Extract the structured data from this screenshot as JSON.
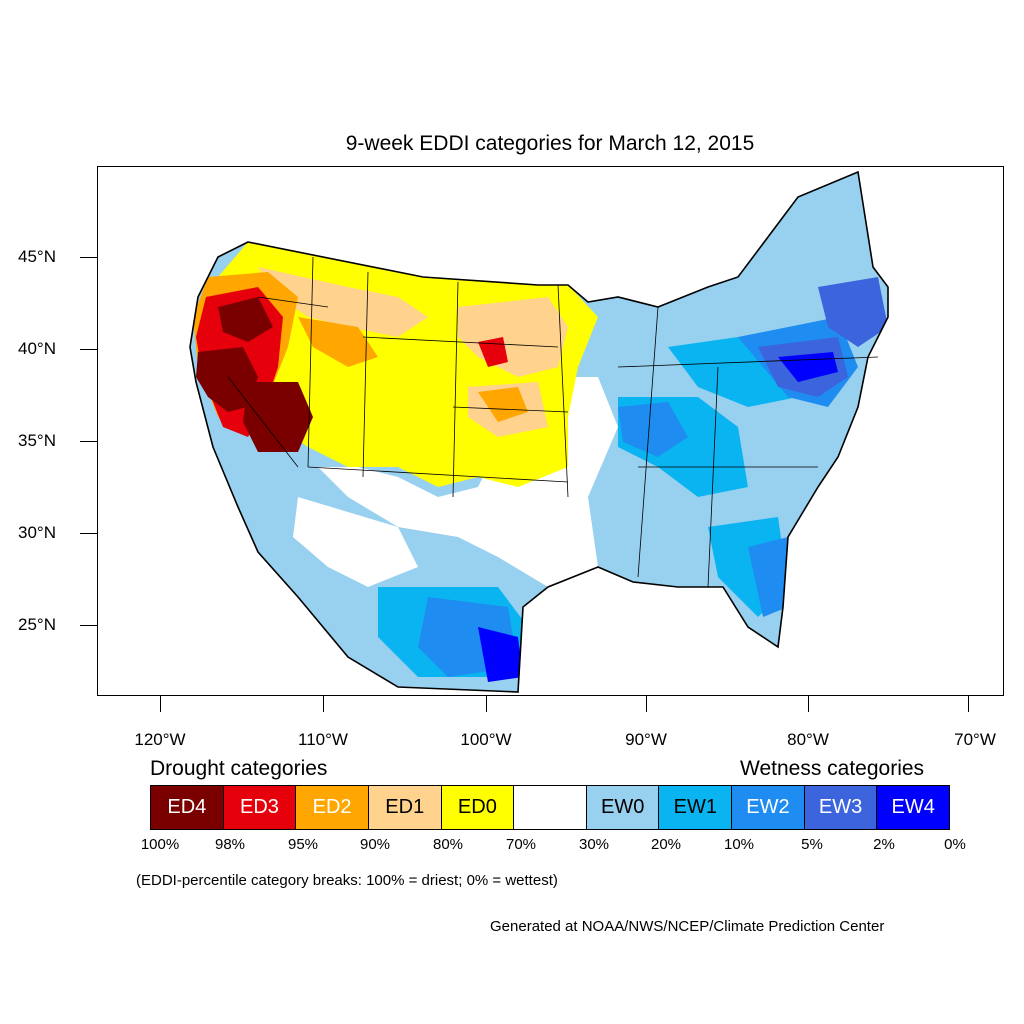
{
  "title": "9-week EDDI categories for March 12, 2015",
  "map": {
    "lat_labels": [
      "45°N",
      "40°N",
      "35°N",
      "30°N",
      "25°N"
    ],
    "lon_labels": [
      "120°W",
      "110°W",
      "100°W",
      "90°W",
      "80°W",
      "70°W"
    ]
  },
  "legend": {
    "drought_heading": "Drought categories",
    "wetness_heading": "Wetness categories",
    "categories": [
      {
        "label": "ED4",
        "color": "#7a0000",
        "text_color": "#ffffff"
      },
      {
        "label": "ED3",
        "color": "#e6000b",
        "text_color": "#ffffff"
      },
      {
        "label": "ED2",
        "color": "#ffa600",
        "text_color": "#ffffff"
      },
      {
        "label": "ED1",
        "color": "#ffd38e",
        "text_color": "#000000"
      },
      {
        "label": "ED0",
        "color": "#ffff00",
        "text_color": "#000000"
      },
      {
        "label": "",
        "color": "#ffffff",
        "text_color": "#000000"
      },
      {
        "label": "EW0",
        "color": "#98d0f0",
        "text_color": "#000000"
      },
      {
        "label": "EW1",
        "color": "#0ab4f0",
        "text_color": "#000000"
      },
      {
        "label": "EW2",
        "color": "#1e8cf0",
        "text_color": "#ffffff"
      },
      {
        "label": "EW3",
        "color": "#3c64dc",
        "text_color": "#ffffff"
      },
      {
        "label": "EW4",
        "color": "#0000ff",
        "text_color": "#ffffff"
      }
    ],
    "breaks": [
      "100%",
      "98%",
      "95%",
      "90%",
      "80%",
      "70%",
      "30%",
      "20%",
      "10%",
      "5%",
      "2%",
      "0%"
    ]
  },
  "note": "(EDDI-percentile category breaks: 100% = driest; 0% = wettest)",
  "credit": "Generated at NOAA/NWS/NCEP/Climate Prediction Center"
}
